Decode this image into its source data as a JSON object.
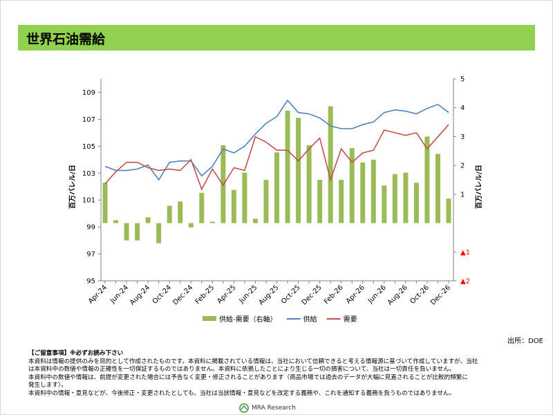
{
  "header": {
    "title": "世界石油需給"
  },
  "chart_data": {
    "type": "combo",
    "categories": [
      "Apr-24",
      null,
      "Jun-24",
      null,
      "Aug-24",
      null,
      "Oct-24",
      null,
      "Dec-24",
      null,
      "Feb-25",
      null,
      "Apr-25",
      null,
      "Jun-25",
      null,
      "Aug-25",
      null,
      "Oct-25",
      null,
      "Dec-25",
      null,
      "Feb-26",
      null,
      "Apr-26",
      null,
      "Jun-26",
      null,
      "Aug-26",
      null,
      "Oct-26",
      null,
      "Dec-26"
    ],
    "ylabel": "百万バレル/日",
    "y2label": "百万バレル/日",
    "ylim": [
      95,
      110
    ],
    "yticks": [
      95,
      97,
      99,
      101,
      103,
      105,
      107,
      109
    ],
    "y2lim": [
      -2,
      5
    ],
    "y2ticks": [
      {
        "value": -2,
        "label": "▲2"
      },
      {
        "value": -1,
        "label": "▲1"
      },
      1,
      2,
      3,
      4,
      5
    ],
    "negative_label_color": "#ff0000",
    "series": [
      {
        "name": "供給-需要（右軸）",
        "type": "bar",
        "axis": "y2",
        "color": "#9bbb59",
        "values": [
          1.4,
          0.1,
          -0.6,
          -0.6,
          0.2,
          -0.7,
          0.6,
          0.75,
          -0.15,
          1.05,
          0.05,
          2.7,
          1.15,
          1.75,
          0.15,
          1.5,
          2.45,
          3.9,
          3.65,
          2.7,
          1.5,
          4.05,
          1.5,
          2.6,
          2.1,
          2.2,
          1.3,
          1.7,
          1.75,
          1.4,
          3.0,
          2.4,
          0.85
        ]
      },
      {
        "name": "供給",
        "type": "line",
        "color": "#4f81bd",
        "values": [
          103.5,
          103.2,
          103.2,
          103.3,
          103.6,
          102.5,
          103.8,
          103.9,
          103.9,
          102.8,
          103.5,
          104.8,
          104.5,
          105.0,
          105.9,
          106.7,
          107.2,
          108.4,
          107.5,
          107.4,
          107.1,
          106.5,
          106.3,
          106.3,
          106.6,
          106.8,
          107.5,
          107.7,
          107.6,
          107.4,
          107.8,
          108.1,
          107.5
        ]
      },
      {
        "name": "需要",
        "type": "line",
        "color": "#c0504d",
        "values": [
          102.2,
          103.1,
          103.8,
          103.8,
          103.4,
          103.2,
          103.3,
          103.2,
          104.0,
          101.8,
          103.3,
          102.1,
          103.4,
          103.2,
          105.7,
          105.3,
          104.7,
          104.7,
          103.9,
          104.8,
          105.6,
          102.5,
          104.8,
          103.8,
          104.5,
          104.7,
          106.2,
          106.0,
          105.8,
          106.0,
          104.8,
          105.7,
          106.6
        ]
      }
    ],
    "source": "出所：DOE"
  },
  "notes": {
    "heading": "【ご留意事項】※必ずお読み下さい",
    "lines": [
      "本資料は情報の提供のみを目的として作成されたものです。本資料に掲載されている情報は、当社において信頼できると考える情報源に基づいて作成していますが、当社",
      "は本資料中の数値や情報の正確性を一切保証するものではありません。本資料に依拠したことにより生じる一切の損害について、当社は一切責任を負いません。",
      "本資料中の数値や情報は、前提が変更された場合には予告なく変更・修正されることがあります（商品市場では過去のデータが大幅に見直されることが比較的頻繁に",
      "発生します）。",
      "本資料中の情報・意見などが、今後修正・変更されたとしても、当社は当該情報・意見などを改定する義務や、これを通知する義務を負うものではありません。"
    ]
  },
  "footer": {
    "logo": "MRA Research"
  }
}
